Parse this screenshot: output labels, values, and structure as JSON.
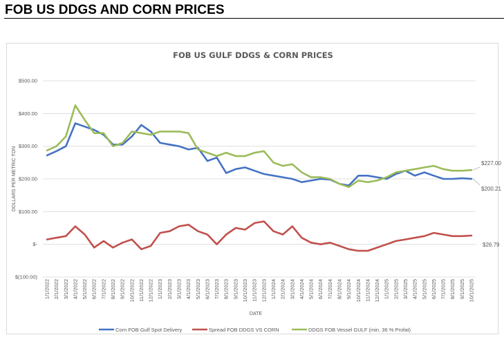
{
  "page": {
    "title": "FOB US DDGS AND CORN PRICES"
  },
  "chart_data": {
    "type": "line",
    "title": "FOB US GULF DDGS & CORN PRICES",
    "xlabel": "DATE",
    "ylabel": "DOLLARS PER METRIC TON",
    "ylim": [
      -100,
      500
    ],
    "yticks": [
      500,
      400,
      300,
      200,
      100,
      0,
      -100
    ],
    "ytick_labels": [
      "$500.00",
      "$400.00",
      "$300.00",
      "$200.00",
      "$100.00",
      "$-",
      "$(100.00)"
    ],
    "grid": true,
    "legend_position": "bottom",
    "x": [
      "1/1/2022",
      "2/1/2022",
      "3/1/2022",
      "4/1/2022",
      "5/1/2022",
      "6/1/2022",
      "7/1/2022",
      "8/1/2022",
      "9/1/2022",
      "10/1/2022",
      "11/1/2022",
      "12/1/2022",
      "1/1/2023",
      "2/1/2023",
      "3/1/2023",
      "4/1/2023",
      "5/1/2023",
      "6/1/2023",
      "7/1/2023",
      "8/1/2023",
      "9/1/2023",
      "10/1/2023",
      "11/1/2023",
      "12/1/2023",
      "1/1/2024",
      "2/1/2024",
      "3/1/2024",
      "4/1/2024",
      "5/1/2024",
      "6/1/2024",
      "7/1/2024",
      "8/1/2024",
      "9/1/2024",
      "10/1/2024",
      "11/1/2024",
      "12/1/2024",
      "1/1/2025",
      "2/1/2025",
      "3/1/2025",
      "4/1/2025",
      "5/1/2025",
      "6/1/2025",
      "7/1/2025",
      "8/1/2025",
      "9/1/2025",
      "10/1/2025"
    ],
    "series": [
      {
        "name": "Corn FOB Gulf Spot Delivery",
        "color": "#4472C4",
        "values": [
          272,
          285,
          300,
          370,
          360,
          350,
          335,
          305,
          305,
          330,
          365,
          345,
          310,
          305,
          300,
          290,
          295,
          255,
          265,
          218,
          230,
          235,
          225,
          215,
          210,
          205,
          200,
          190,
          195,
          200,
          198,
          185,
          180,
          210,
          210,
          205,
          200,
          215,
          225,
          210,
          220,
          210,
          200,
          200,
          202,
          200.21
        ],
        "end_label": "$200.21"
      },
      {
        "name": "Spread FOB DDGS VS CORN",
        "color": "#C0504D",
        "values": [
          15,
          20,
          25,
          55,
          30,
          -10,
          10,
          -10,
          5,
          15,
          -15,
          -5,
          35,
          40,
          55,
          60,
          40,
          30,
          0,
          30,
          50,
          45,
          65,
          70,
          40,
          30,
          55,
          20,
          5,
          0,
          5,
          -5,
          -15,
          -20,
          -20,
          -10,
          0,
          10,
          15,
          20,
          25,
          35,
          30,
          25,
          25,
          26.79
        ],
        "end_label": "$26.79"
      },
      {
        "name": "DDGS FOB Vessel GULF  (min. 36 % Profat)",
        "color": "#9BBB59",
        "values": [
          287,
          300,
          330,
          425,
          380,
          340,
          340,
          300,
          310,
          345,
          340,
          335,
          345,
          345,
          345,
          340,
          290,
          280,
          270,
          280,
          270,
          270,
          280,
          285,
          250,
          240,
          245,
          220,
          205,
          205,
          200,
          185,
          175,
          195,
          190,
          195,
          205,
          220,
          225,
          230,
          235,
          240,
          230,
          225,
          225,
          227.0
        ],
        "end_label": "$227.00"
      }
    ]
  }
}
